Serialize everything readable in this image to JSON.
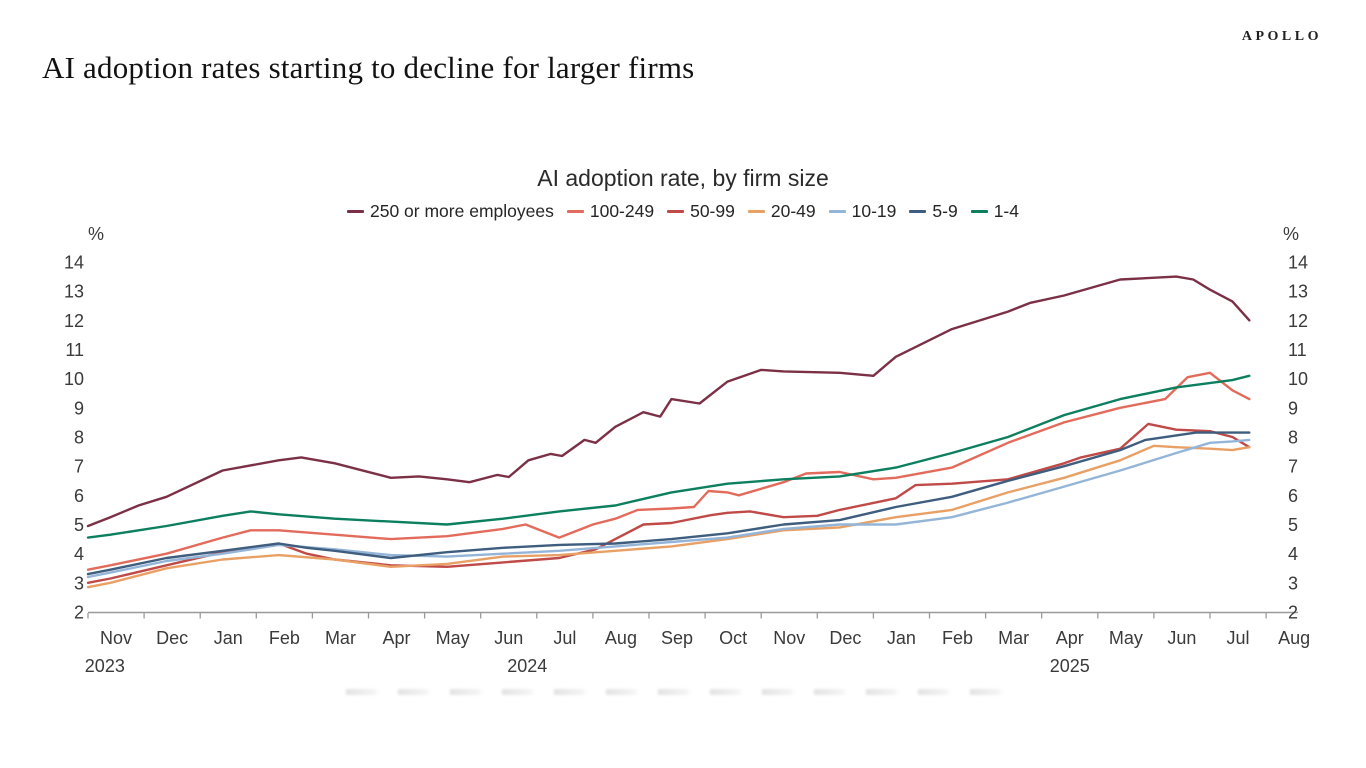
{
  "header": {
    "brand": "APOLLO",
    "title": "AI adoption rates starting to decline for larger firms"
  },
  "chart_data": {
    "type": "line",
    "title": "AI adoption rate, by firm size",
    "y_unit_label": "%",
    "ylim": [
      2,
      14
    ],
    "ytick_step": 1,
    "grid": false,
    "legend_position": "top",
    "x_tick_labels": [
      "Nov",
      "Dec",
      "Jan",
      "Feb",
      "Mar",
      "Apr",
      "May",
      "Jun",
      "Jul",
      "Aug",
      "Sep",
      "Oct",
      "Nov",
      "Dec",
      "Jan",
      "Feb",
      "Mar",
      "Apr",
      "May",
      "Jun",
      "Jul",
      "Aug"
    ],
    "year_labels": [
      {
        "text": "2023",
        "month_pos": -0.2
      },
      {
        "text": "2024",
        "month_pos": 7.33
      },
      {
        "text": "2025",
        "month_pos": 17.0
      }
    ],
    "series": [
      {
        "name": "250 or more employees",
        "color": "#7b3045",
        "x": [
          -0.4,
          0,
          0.5,
          1,
          2,
          3,
          3.4,
          4,
          5,
          5.5,
          6,
          6.4,
          6.9,
          7.1,
          7.45,
          7.85,
          8.05,
          8.45,
          8.65,
          9,
          9.5,
          9.8,
          10,
          10.5,
          11,
          11.6,
          12,
          13,
          13.6,
          14,
          15,
          16,
          16.4,
          17,
          18,
          19,
          19.3,
          19.6,
          20,
          20.3
        ],
        "values": [
          4.95,
          5.25,
          5.65,
          5.95,
          6.85,
          7.2,
          7.3,
          7.1,
          6.6,
          6.65,
          6.55,
          6.45,
          6.7,
          6.63,
          7.2,
          7.42,
          7.35,
          7.9,
          7.8,
          8.35,
          8.85,
          8.7,
          9.3,
          9.15,
          9.9,
          10.3,
          10.25,
          10.2,
          10.1,
          10.75,
          11.7,
          12.3,
          12.6,
          12.85,
          13.4,
          13.5,
          13.4,
          13.05,
          12.65,
          12.0
        ]
      },
      {
        "name": "100-249",
        "color": "#e26b5b",
        "x": [
          -0.4,
          0,
          1,
          2,
          2.5,
          3,
          4,
          5,
          6,
          7,
          7.4,
          8,
          8.6,
          9,
          9.4,
          10,
          10.4,
          10.66,
          11,
          11.2,
          12,
          12.4,
          13,
          13.6,
          14,
          15,
          16,
          17,
          18,
          18.8,
          19.2,
          19.6,
          20,
          20.3
        ],
        "values": [
          3.45,
          3.6,
          4.0,
          4.55,
          4.8,
          4.8,
          4.65,
          4.5,
          4.6,
          4.85,
          5.0,
          4.55,
          5.0,
          5.2,
          5.5,
          5.55,
          5.6,
          6.15,
          6.1,
          6.0,
          6.45,
          6.75,
          6.8,
          6.55,
          6.6,
          6.95,
          7.8,
          8.5,
          9.0,
          9.3,
          10.05,
          10.2,
          9.6,
          9.3
        ]
      },
      {
        "name": "50-99",
        "color": "#bf4a47",
        "x": [
          -0.4,
          0,
          1,
          2,
          3,
          3.5,
          4,
          5,
          6,
          7,
          8,
          8.65,
          9,
          9.5,
          10,
          10.7,
          11,
          11.4,
          12,
          12.6,
          13,
          14,
          14.35,
          15,
          16,
          17,
          17.3,
          18,
          18.5,
          19,
          19.6,
          20,
          20.3
        ],
        "values": [
          3.0,
          3.15,
          3.6,
          4.05,
          4.35,
          4.0,
          3.8,
          3.6,
          3.55,
          3.7,
          3.85,
          4.15,
          4.5,
          5.0,
          5.05,
          5.32,
          5.4,
          5.45,
          5.25,
          5.3,
          5.5,
          5.9,
          6.35,
          6.4,
          6.55,
          7.1,
          7.3,
          7.6,
          8.45,
          8.25,
          8.2,
          8.0,
          7.65
        ]
      },
      {
        "name": "20-49",
        "color": "#e8a065",
        "x": [
          -0.4,
          0,
          1,
          2,
          3,
          4,
          5,
          6,
          7,
          8,
          9,
          10,
          11,
          12,
          13,
          14,
          15,
          16,
          17,
          18,
          18.6,
          19,
          19.6,
          20,
          20.3
        ],
        "values": [
          2.85,
          3.0,
          3.5,
          3.8,
          3.95,
          3.8,
          3.55,
          3.65,
          3.9,
          3.95,
          4.1,
          4.25,
          4.5,
          4.8,
          4.9,
          5.25,
          5.5,
          6.1,
          6.6,
          7.2,
          7.7,
          7.65,
          7.6,
          7.55,
          7.65
        ]
      },
      {
        "name": "10-19",
        "color": "#94b5d8",
        "x": [
          -0.4,
          0,
          1,
          2,
          3,
          4,
          5,
          6,
          7,
          8,
          9,
          10,
          11,
          12,
          13,
          14,
          15,
          16,
          17,
          18,
          19,
          19.6,
          20,
          20.3
        ],
        "values": [
          3.2,
          3.35,
          3.75,
          4.0,
          4.3,
          4.15,
          3.95,
          3.9,
          4.0,
          4.1,
          4.25,
          4.4,
          4.55,
          4.85,
          5.0,
          5.0,
          5.25,
          5.75,
          6.3,
          6.85,
          7.45,
          7.8,
          7.85,
          7.9
        ]
      },
      {
        "name": "5-9",
        "color": "#3f5d7e",
        "x": [
          -0.4,
          0,
          1,
          2,
          3,
          3.5,
          4,
          5,
          6,
          7,
          8,
          9,
          10,
          11,
          12,
          13,
          14,
          15,
          16,
          17,
          18,
          18.45,
          19.35,
          20.3
        ],
        "values": [
          3.3,
          3.45,
          3.85,
          4.1,
          4.35,
          4.2,
          4.1,
          3.85,
          4.05,
          4.2,
          4.3,
          4.35,
          4.5,
          4.7,
          5.0,
          5.15,
          5.6,
          5.95,
          6.5,
          7.0,
          7.55,
          7.9,
          8.15,
          8.15
        ]
      },
      {
        "name": "1-4",
        "color": "#0c7f5f",
        "x": [
          -0.4,
          0,
          1,
          2,
          2.5,
          3,
          4,
          5,
          6,
          7,
          8,
          9,
          10,
          11,
          12,
          13,
          14,
          15,
          16,
          17,
          18,
          19,
          20,
          20.3
        ],
        "values": [
          4.55,
          4.65,
          4.95,
          5.3,
          5.45,
          5.35,
          5.2,
          5.1,
          5.0,
          5.2,
          5.45,
          5.65,
          6.1,
          6.4,
          6.55,
          6.65,
          6.95,
          7.45,
          8.0,
          8.75,
          9.3,
          9.7,
          9.95,
          10.1
        ]
      }
    ]
  }
}
